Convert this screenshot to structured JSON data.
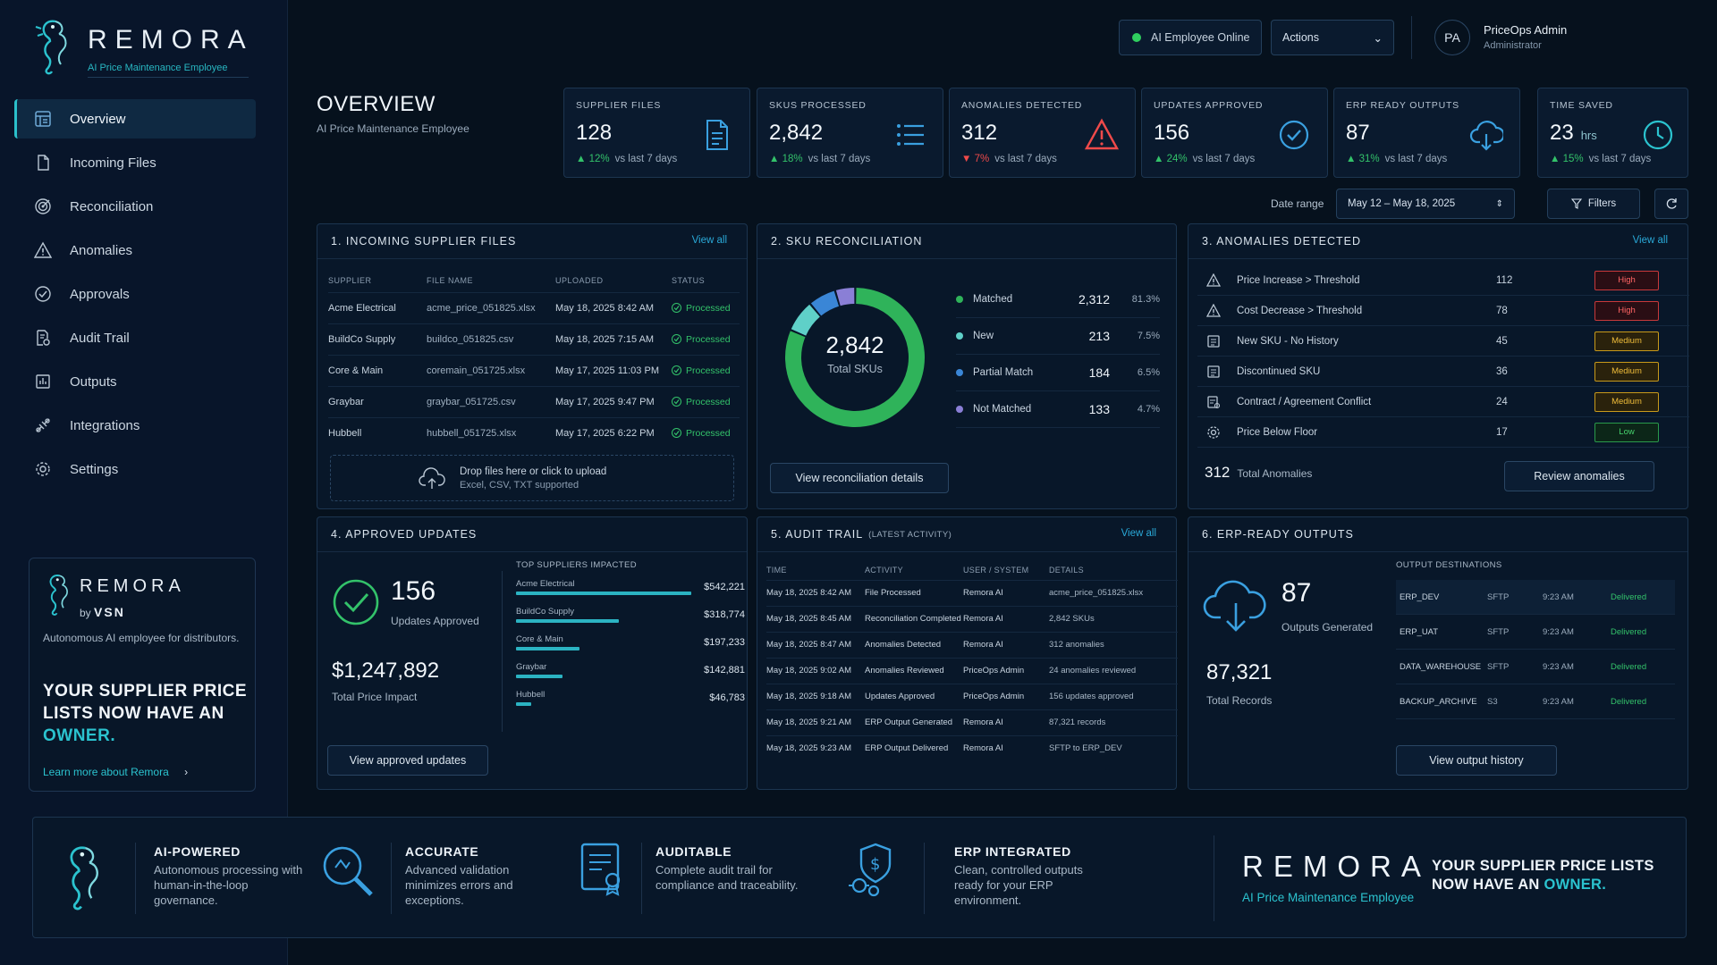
{
  "brand": {
    "name": "REMORA",
    "tagline": "AI Price Maintenance Employee"
  },
  "sidebar": {
    "items": [
      {
        "label": "Overview",
        "icon": "dashboard-icon",
        "active": true
      },
      {
        "label": "Incoming Files",
        "icon": "file-icon"
      },
      {
        "label": "Reconciliation",
        "icon": "target-icon"
      },
      {
        "label": "Anomalies",
        "icon": "warning-icon"
      },
      {
        "label": "Approvals",
        "icon": "check-circle-icon"
      },
      {
        "label": "Audit Trail",
        "icon": "audit-icon"
      },
      {
        "label": "Outputs",
        "icon": "output-icon"
      },
      {
        "label": "Integrations",
        "icon": "puzzle-icon"
      },
      {
        "label": "Settings",
        "icon": "gear-icon"
      }
    ],
    "promo": {
      "name": "REMORA",
      "by": "by",
      "by_brand": "VSN",
      "desc": "Autonomous AI employee for distributors.",
      "head_1": "YOUR SUPPLIER PRICE LISTS NOW HAVE AN",
      "head_hl": "OWNER.",
      "link": "Learn more about Remora"
    }
  },
  "topbar": {
    "status": "AI Employee Online",
    "actions": "Actions",
    "avatar": "PA",
    "user_name": "PriceOps Admin",
    "user_role": "Administrator"
  },
  "overview": {
    "title": "OVERVIEW",
    "subtitle": "AI Price Maintenance Employee"
  },
  "kpis": [
    {
      "label": "SUPPLIER FILES",
      "value": "128",
      "unit": "",
      "dir": "up",
      "delta": "12%",
      "period": "vs last 7 days",
      "icon": "file-list-icon"
    },
    {
      "label": "SKUS PROCESSED",
      "value": "2,842",
      "unit": "",
      "dir": "up",
      "delta": "18%",
      "period": "vs last 7 days",
      "icon": "list-icon"
    },
    {
      "label": "ANOMALIES DETECTED",
      "value": "312",
      "unit": "",
      "dir": "down",
      "delta": "7%",
      "period": "vs last 7 days",
      "icon": "warning-icon"
    },
    {
      "label": "UPDATES APPROVED",
      "value": "156",
      "unit": "",
      "dir": "up",
      "delta": "24%",
      "period": "vs last 7 days",
      "icon": "check-circle-icon"
    },
    {
      "label": "ERP READY OUTPUTS",
      "value": "87",
      "unit": "",
      "dir": "up",
      "delta": "31%",
      "period": "vs last 7 days",
      "icon": "cloud-download-icon"
    },
    {
      "label": "TIME SAVED",
      "value": "23",
      "unit": "hrs",
      "dir": "up",
      "delta": "15%",
      "period": "vs last 7 days",
      "icon": "clock-icon"
    }
  ],
  "daterange": {
    "label": "Date range",
    "value": "May 12 – May 18, 2025",
    "filters": "Filters"
  },
  "incoming": {
    "title": "1.  INCOMING SUPPLIER FILES",
    "view_all": "View all",
    "columns": [
      "SUPPLIER",
      "FILE NAME",
      "UPLOADED",
      "STATUS"
    ],
    "rows": [
      {
        "supplier": "Acme Electrical",
        "file": "acme_price_051825.xlsx",
        "uploaded": "May 18, 2025 8:42 AM",
        "status": "Processed"
      },
      {
        "supplier": "BuildCo Supply",
        "file": "buildco_051825.csv",
        "uploaded": "May 18, 2025 7:15 AM",
        "status": "Processed"
      },
      {
        "supplier": "Core & Main",
        "file": "coremain_051725.xlsx",
        "uploaded": "May 17, 2025 11:03 PM",
        "status": "Processed"
      },
      {
        "supplier": "Graybar",
        "file": "graybar_051725.csv",
        "uploaded": "May 17, 2025 9:47 PM",
        "status": "Processed"
      },
      {
        "supplier": "Hubbell",
        "file": "hubbell_051725.xlsx",
        "uploaded": "May 17, 2025 6:22 PM",
        "status": "Processed"
      }
    ],
    "upload_line1": "Drop files here or click to upload",
    "upload_line2": "Excel, CSV, TXT supported"
  },
  "recon": {
    "title": "2.  SKU RECONCILIATION",
    "total": "2,842",
    "total_label": "Total SKUs",
    "button": "View reconciliation details"
  },
  "anomalies": {
    "title": "3.  ANOMALIES DETECTED",
    "view_all": "View all",
    "rows": [
      {
        "name": "Price Increase > Threshold",
        "count": "112",
        "severity": "High",
        "level": "high",
        "icon": "warning-icon"
      },
      {
        "name": "Cost Decrease > Threshold",
        "count": "78",
        "severity": "High",
        "level": "high",
        "icon": "warning-icon"
      },
      {
        "name": "New SKU - No History",
        "count": "45",
        "severity": "Medium",
        "level": "medium",
        "icon": "document-icon"
      },
      {
        "name": "Discontinued SKU",
        "count": "36",
        "severity": "Medium",
        "level": "medium",
        "icon": "document-icon"
      },
      {
        "name": "Contract / Agreement Conflict",
        "count": "24",
        "severity": "Medium",
        "level": "medium",
        "icon": "contract-icon"
      },
      {
        "name": "Price Below Floor",
        "count": "17",
        "severity": "Low",
        "level": "low",
        "icon": "gear-icon"
      }
    ],
    "total": "312",
    "total_label": "Total Anomalies",
    "button": "Review anomalies"
  },
  "approved": {
    "title": "4.  APPROVED UPDATES",
    "count": "156",
    "count_label": "Updates Approved",
    "impact": "$1,247,892",
    "impact_label": "Total Price Impact",
    "suppliers_head": "TOP SUPPLIERS IMPACTED",
    "button": "View approved updates"
  },
  "audit": {
    "title": "5.  AUDIT TRAIL",
    "subtitle": "(LATEST ACTIVITY)",
    "view_all": "View all",
    "columns": [
      "TIME",
      "ACTIVITY",
      "USER / SYSTEM",
      "DETAILS"
    ],
    "rows": [
      {
        "time": "May 18, 2025 8:42 AM",
        "activity": "File Processed",
        "user": "Remora AI",
        "details": "acme_price_051825.xlsx"
      },
      {
        "time": "May 18, 2025 8:45 AM",
        "activity": "Reconciliation Completed",
        "user": "Remora AI",
        "details": "2,842 SKUs"
      },
      {
        "time": "May 18, 2025 8:47 AM",
        "activity": "Anomalies Detected",
        "user": "Remora AI",
        "details": "312 anomalies"
      },
      {
        "time": "May 18, 2025 9:02 AM",
        "activity": "Anomalies Reviewed",
        "user": "PriceOps Admin",
        "details": "24 anomalies reviewed"
      },
      {
        "time": "May 18, 2025 9:18 AM",
        "activity": "Updates Approved",
        "user": "PriceOps Admin",
        "details": "156 updates approved"
      },
      {
        "time": "May 18, 2025 9:21 AM",
        "activity": "ERP Output Generated",
        "user": "Remora AI",
        "details": "87,321 records"
      },
      {
        "time": "May 18, 2025 9:23 AM",
        "activity": "ERP Output Delivered",
        "user": "Remora AI",
        "details": "SFTP to ERP_DEV"
      }
    ]
  },
  "erp": {
    "title": "6.  ERP-READY OUTPUTS",
    "outputs": "87",
    "outputs_label": "Outputs Generated",
    "records": "87,321",
    "records_label": "Total Records",
    "dest_head": "OUTPUT DESTINATIONS",
    "destinations": [
      {
        "name": "ERP_DEV",
        "proto": "SFTP",
        "time": "9:23 AM",
        "status": "Delivered"
      },
      {
        "name": "ERP_UAT",
        "proto": "SFTP",
        "time": "9:23 AM",
        "status": "Delivered"
      },
      {
        "name": "DATA_WAREHOUSE",
        "proto": "SFTP",
        "time": "9:23 AM",
        "status": "Delivered"
      },
      {
        "name": "BACKUP_ARCHIVE",
        "proto": "S3",
        "time": "9:23 AM",
        "status": "Delivered"
      }
    ],
    "button": "View output history"
  },
  "footer": {
    "features": [
      {
        "head": "AI-POWERED",
        "desc": "Autonomous processing with human-in-the-loop governance.",
        "icon": "seahorse-icon"
      },
      {
        "head": "ACCURATE",
        "desc": "Advanced validation minimizes errors and exceptions.",
        "icon": "magnifier-icon"
      },
      {
        "head": "AUDITABLE",
        "desc": "Complete audit trail for compliance and traceability.",
        "icon": "certificate-icon"
      },
      {
        "head": "ERP INTEGRATED",
        "desc": "Clean, controlled outputs ready for your ERP environment.",
        "icon": "erp-gear-icon"
      }
    ],
    "brand": "REMORA",
    "tagline": "AI Price Maintenance Employee",
    "slogan_1": "YOUR SUPPLIER PRICE LISTS NOW HAVE AN",
    "slogan_hl": "OWNER."
  },
  "colors": {
    "accent": "#2bc3cf",
    "success": "#33c26a",
    "danger": "#ef4a4a",
    "warning": "#f0bd3a"
  },
  "chart_data": [
    {
      "type": "pie",
      "categories": [
        "Matched",
        "New",
        "Partial Match",
        "Not Matched"
      ],
      "values": [
        2312,
        213,
        184,
        133
      ],
      "percents": [
        "81.3%",
        "7.5%",
        "6.5%",
        "4.7%"
      ],
      "display_values": [
        "2,312",
        "213",
        "184",
        "133"
      ],
      "colors": [
        "#2fb35a",
        "#5fd0c8",
        "#3a86d6",
        "#8a7fd6"
      ]
    },
    {
      "type": "bar",
      "categories": [
        "Acme Electrical",
        "BuildCo Supply",
        "Core & Main",
        "Graybar",
        "Hubbell"
      ],
      "values": [
        542221,
        318774,
        197233,
        142881,
        46783
      ],
      "display_values": [
        "$542,221",
        "$318,774",
        "$197,233",
        "$142,881",
        "$46,783"
      ]
    }
  ]
}
